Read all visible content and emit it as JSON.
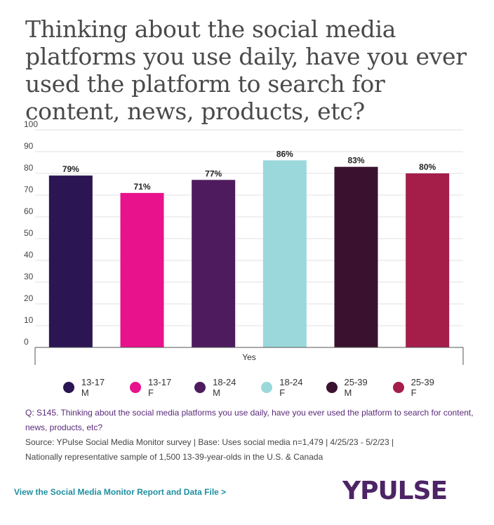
{
  "title": "Thinking about the social media platforms you use daily, have you ever used the platform to search for content, news, products, etc?",
  "chart_data": {
    "type": "bar",
    "categories": [
      "Yes"
    ],
    "series": [
      {
        "name": "13-17 M",
        "values": [
          79
        ],
        "color": "#2b1553"
      },
      {
        "name": "13-17 F",
        "values": [
          71
        ],
        "color": "#e8128c"
      },
      {
        "name": "18-24 M",
        "values": [
          77
        ],
        "color": "#4e1c5e"
      },
      {
        "name": "18-24 F",
        "values": [
          86
        ],
        "color": "#9ad8db"
      },
      {
        "name": "25-39 M",
        "values": [
          83
        ],
        "color": "#3a1230"
      },
      {
        "name": "25-39 F",
        "values": [
          80
        ],
        "color": "#a51e4a"
      }
    ],
    "data_labels": [
      "79%",
      "71%",
      "77%",
      "86%",
      "83%",
      "80%"
    ],
    "ylim": [
      0,
      100
    ],
    "yticks": [
      0,
      10,
      20,
      30,
      40,
      50,
      60,
      70,
      80,
      90,
      100
    ],
    "xlabel": "",
    "ylabel": "",
    "grid": true,
    "legend_position": "bottom"
  },
  "legend": [
    {
      "label": "13-17 M",
      "color": "#2b1553"
    },
    {
      "label": "13-17 F",
      "color": "#e8128c"
    },
    {
      "label": "18-24 M",
      "color": "#4e1c5e"
    },
    {
      "label": "18-24 F",
      "color": "#9ad8db"
    },
    {
      "label": "25-39 M",
      "color": "#3a1230"
    },
    {
      "label": "25-39 F",
      "color": "#a51e4a"
    }
  ],
  "notes": {
    "question": "Q: S145. Thinking about the social media platforms you use daily, have you ever used the platform to search for content, news, products, etc?",
    "source": "Source: YPulse Social Media Monitor survey | Base: Uses social media n=1,479 | 4/25/23 - 5/2/23 |",
    "sample": "Nationally representative sample of 1,500 13-39-year-olds in the U.S. & Canada"
  },
  "footer": {
    "link_label": "View the Social Media Monitor Report and Data File >",
    "logo_text": "YPULSE"
  }
}
